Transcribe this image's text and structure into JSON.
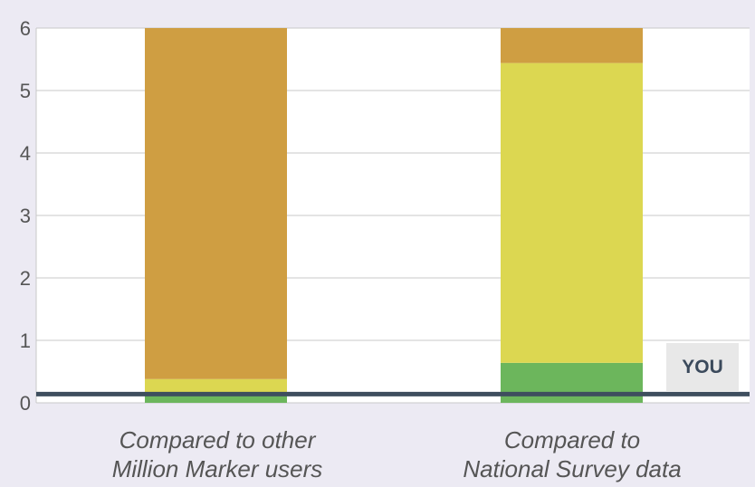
{
  "chart_data": {
    "type": "bar",
    "stacked": true,
    "categories": [
      "Compared to other Million Marker users",
      "Compared to National Survey data"
    ],
    "category_lines": [
      [
        "Compared to other",
        "Million Marker users"
      ],
      [
        "Compared to",
        "National Survey data"
      ]
    ],
    "series": [
      {
        "color": "#6cb65c",
        "values": [
          0.12,
          0.64
        ]
      },
      {
        "color": "#dcd751",
        "values": [
          0.26,
          4.8
        ]
      },
      {
        "color": "#cf9e42",
        "values": [
          5.62,
          0.56
        ]
      }
    ],
    "ylim": [
      0,
      6
    ],
    "yticks": [
      0,
      1,
      2,
      3,
      4,
      5,
      6
    ],
    "grid": true,
    "plot_background": "#ffffff",
    "marker": {
      "label": "YOU",
      "value": 0.14,
      "color": "#3e4e5e"
    }
  }
}
